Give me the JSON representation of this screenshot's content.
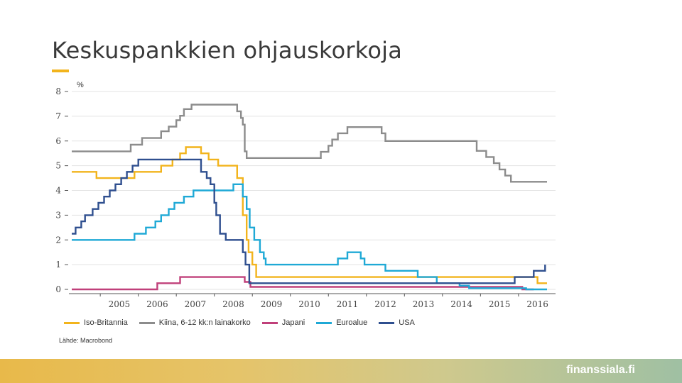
{
  "slide": {
    "title": "Keskuspankkien ohjauskorkoja",
    "source": "Lähde: Macrobond",
    "brand": "finanssiala.fi"
  },
  "colors": {
    "accent": "#f2b41c",
    "uk": "#f2b41c",
    "china": "#8c8c8c",
    "japan": "#c0407a",
    "euro": "#1fa9d6",
    "usa": "#2f4f8f"
  },
  "chart_data": {
    "type": "line",
    "ylabel": "%",
    "ylim": [
      0,
      8
    ],
    "xlim": [
      2004.25,
      2016.75
    ],
    "yticks": [
      0,
      1,
      2,
      3,
      4,
      5,
      6,
      7,
      8
    ],
    "xtick_labels": [
      "2005",
      "2006",
      "2007",
      "2008",
      "2009",
      "2010",
      "2011",
      "2012",
      "2013",
      "2014",
      "2015",
      "2016"
    ],
    "grid": true,
    "legend_position": "bottom",
    "series": [
      {
        "name": "Iso-Britannia",
        "key": "uk",
        "points": [
          [
            2004.25,
            4.75
          ],
          [
            2004.9,
            4.75
          ],
          [
            2004.9,
            4.5
          ],
          [
            2005.9,
            4.5
          ],
          [
            2005.9,
            4.75
          ],
          [
            2006.6,
            4.75
          ],
          [
            2006.6,
            5.0
          ],
          [
            2006.9,
            5.0
          ],
          [
            2006.9,
            5.25
          ],
          [
            2007.1,
            5.25
          ],
          [
            2007.1,
            5.5
          ],
          [
            2007.25,
            5.5
          ],
          [
            2007.25,
            5.75
          ],
          [
            2007.65,
            5.75
          ],
          [
            2007.65,
            5.5
          ],
          [
            2007.85,
            5.5
          ],
          [
            2007.85,
            5.25
          ],
          [
            2008.1,
            5.25
          ],
          [
            2008.1,
            5.0
          ],
          [
            2008.6,
            5.0
          ],
          [
            2008.6,
            4.5
          ],
          [
            2008.75,
            4.5
          ],
          [
            2008.75,
            3.0
          ],
          [
            2008.85,
            3.0
          ],
          [
            2008.85,
            2.0
          ],
          [
            2008.9,
            2.0
          ],
          [
            2008.9,
            1.5
          ],
          [
            2009.0,
            1.5
          ],
          [
            2009.0,
            1.0
          ],
          [
            2009.1,
            1.0
          ],
          [
            2009.1,
            0.5
          ],
          [
            2016.5,
            0.5
          ],
          [
            2016.5,
            0.25
          ],
          [
            2016.75,
            0.25
          ]
        ]
      },
      {
        "name": "Kiina, 6-12 kk:n lainakorko",
        "key": "china",
        "points": [
          [
            2004.25,
            5.58
          ],
          [
            2005.8,
            5.58
          ],
          [
            2005.8,
            5.85
          ],
          [
            2006.1,
            5.85
          ],
          [
            2006.1,
            6.12
          ],
          [
            2006.6,
            6.12
          ],
          [
            2006.6,
            6.39
          ],
          [
            2006.8,
            6.39
          ],
          [
            2006.8,
            6.58
          ],
          [
            2007.0,
            6.58
          ],
          [
            2007.0,
            6.84
          ],
          [
            2007.1,
            6.84
          ],
          [
            2007.1,
            7.02
          ],
          [
            2007.2,
            7.02
          ],
          [
            2007.2,
            7.29
          ],
          [
            2007.4,
            7.29
          ],
          [
            2007.4,
            7.47
          ],
          [
            2008.6,
            7.47
          ],
          [
            2008.6,
            7.2
          ],
          [
            2008.7,
            7.2
          ],
          [
            2008.7,
            6.93
          ],
          [
            2008.75,
            6.93
          ],
          [
            2008.75,
            6.66
          ],
          [
            2008.8,
            6.66
          ],
          [
            2008.8,
            5.58
          ],
          [
            2008.85,
            5.58
          ],
          [
            2008.85,
            5.31
          ],
          [
            2010.8,
            5.31
          ],
          [
            2010.8,
            5.56
          ],
          [
            2011.0,
            5.56
          ],
          [
            2011.0,
            5.81
          ],
          [
            2011.1,
            5.81
          ],
          [
            2011.1,
            6.06
          ],
          [
            2011.25,
            6.06
          ],
          [
            2011.25,
            6.31
          ],
          [
            2011.5,
            6.31
          ],
          [
            2011.5,
            6.56
          ],
          [
            2012.4,
            6.56
          ],
          [
            2012.4,
            6.31
          ],
          [
            2012.5,
            6.31
          ],
          [
            2012.5,
            6.0
          ],
          [
            2014.9,
            6.0
          ],
          [
            2014.9,
            5.6
          ],
          [
            2015.15,
            5.6
          ],
          [
            2015.15,
            5.35
          ],
          [
            2015.35,
            5.35
          ],
          [
            2015.35,
            5.1
          ],
          [
            2015.5,
            5.1
          ],
          [
            2015.5,
            4.85
          ],
          [
            2015.65,
            4.85
          ],
          [
            2015.65,
            4.6
          ],
          [
            2015.8,
            4.6
          ],
          [
            2015.8,
            4.35
          ],
          [
            2016.75,
            4.35
          ]
        ]
      },
      {
        "name": "Japani",
        "key": "japan",
        "points": [
          [
            2004.25,
            0.0
          ],
          [
            2006.5,
            0.0
          ],
          [
            2006.5,
            0.25
          ],
          [
            2007.1,
            0.25
          ],
          [
            2007.1,
            0.5
          ],
          [
            2008.8,
            0.5
          ],
          [
            2008.8,
            0.3
          ],
          [
            2008.95,
            0.3
          ],
          [
            2008.95,
            0.1
          ],
          [
            2016.1,
            0.1
          ],
          [
            2016.1,
            0.0
          ],
          [
            2016.4,
            0.0
          ]
        ]
      },
      {
        "name": "Euroalue",
        "key": "euro",
        "points": [
          [
            2004.25,
            2.0
          ],
          [
            2005.9,
            2.0
          ],
          [
            2005.9,
            2.25
          ],
          [
            2006.2,
            2.25
          ],
          [
            2006.2,
            2.5
          ],
          [
            2006.45,
            2.5
          ],
          [
            2006.45,
            2.75
          ],
          [
            2006.6,
            2.75
          ],
          [
            2006.6,
            3.0
          ],
          [
            2006.8,
            3.0
          ],
          [
            2006.8,
            3.25
          ],
          [
            2006.95,
            3.25
          ],
          [
            2006.95,
            3.5
          ],
          [
            2007.2,
            3.5
          ],
          [
            2007.2,
            3.75
          ],
          [
            2007.45,
            3.75
          ],
          [
            2007.45,
            4.0
          ],
          [
            2008.5,
            4.0
          ],
          [
            2008.5,
            4.25
          ],
          [
            2008.75,
            4.25
          ],
          [
            2008.75,
            3.75
          ],
          [
            2008.85,
            3.75
          ],
          [
            2008.85,
            3.25
          ],
          [
            2008.93,
            3.25
          ],
          [
            2008.93,
            2.5
          ],
          [
            2009.05,
            2.5
          ],
          [
            2009.05,
            2.0
          ],
          [
            2009.2,
            2.0
          ],
          [
            2009.2,
            1.5
          ],
          [
            2009.3,
            1.5
          ],
          [
            2009.3,
            1.25
          ],
          [
            2009.35,
            1.25
          ],
          [
            2009.35,
            1.0
          ],
          [
            2011.25,
            1.0
          ],
          [
            2011.25,
            1.25
          ],
          [
            2011.5,
            1.25
          ],
          [
            2011.5,
            1.5
          ],
          [
            2011.85,
            1.5
          ],
          [
            2011.85,
            1.25
          ],
          [
            2011.95,
            1.25
          ],
          [
            2011.95,
            1.0
          ],
          [
            2012.5,
            1.0
          ],
          [
            2012.5,
            0.75
          ],
          [
            2013.35,
            0.75
          ],
          [
            2013.35,
            0.5
          ],
          [
            2013.85,
            0.5
          ],
          [
            2013.85,
            0.25
          ],
          [
            2014.45,
            0.25
          ],
          [
            2014.45,
            0.15
          ],
          [
            2014.7,
            0.15
          ],
          [
            2014.7,
            0.05
          ],
          [
            2016.2,
            0.05
          ],
          [
            2016.2,
            0.0
          ],
          [
            2016.75,
            0.0
          ]
        ]
      },
      {
        "name": "USA",
        "key": "usa",
        "points": [
          [
            2004.25,
            2.25
          ],
          [
            2004.35,
            2.25
          ],
          [
            2004.35,
            2.5
          ],
          [
            2004.5,
            2.5
          ],
          [
            2004.5,
            2.75
          ],
          [
            2004.6,
            2.75
          ],
          [
            2004.6,
            3.0
          ],
          [
            2004.8,
            3.0
          ],
          [
            2004.8,
            3.25
          ],
          [
            2004.95,
            3.25
          ],
          [
            2004.95,
            3.5
          ],
          [
            2005.1,
            3.5
          ],
          [
            2005.1,
            3.75
          ],
          [
            2005.25,
            3.75
          ],
          [
            2005.25,
            4.0
          ],
          [
            2005.4,
            4.0
          ],
          [
            2005.4,
            4.25
          ],
          [
            2005.55,
            4.25
          ],
          [
            2005.55,
            4.5
          ],
          [
            2005.7,
            4.5
          ],
          [
            2005.7,
            4.75
          ],
          [
            2005.85,
            4.75
          ],
          [
            2005.85,
            5.0
          ],
          [
            2006.0,
            5.0
          ],
          [
            2006.0,
            5.25
          ],
          [
            2007.65,
            5.25
          ],
          [
            2007.65,
            4.75
          ],
          [
            2007.8,
            4.75
          ],
          [
            2007.8,
            4.5
          ],
          [
            2007.9,
            4.5
          ],
          [
            2007.9,
            4.25
          ],
          [
            2008.0,
            4.25
          ],
          [
            2008.0,
            3.5
          ],
          [
            2008.05,
            3.5
          ],
          [
            2008.05,
            3.0
          ],
          [
            2008.15,
            3.0
          ],
          [
            2008.15,
            2.25
          ],
          [
            2008.3,
            2.25
          ],
          [
            2008.3,
            2.0
          ],
          [
            2008.75,
            2.0
          ],
          [
            2008.75,
            1.5
          ],
          [
            2008.82,
            1.5
          ],
          [
            2008.82,
            1.0
          ],
          [
            2008.92,
            1.0
          ],
          [
            2008.92,
            0.25
          ],
          [
            2015.9,
            0.25
          ],
          [
            2015.9,
            0.5
          ],
          [
            2016.4,
            0.5
          ],
          [
            2016.4,
            0.75
          ],
          [
            2016.7,
            0.75
          ],
          [
            2016.7,
            1.0
          ]
        ]
      }
    ]
  }
}
